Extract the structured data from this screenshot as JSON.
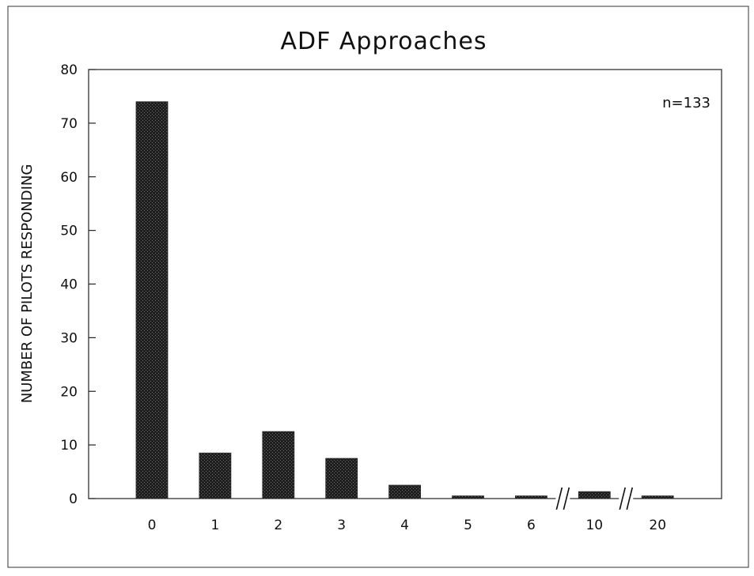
{
  "chart_data": {
    "type": "bar",
    "title": "ADF Approaches",
    "ylabel": "NUMBER OF PILOTS RESPONDING",
    "xlabel": "",
    "categories": [
      "0",
      "1",
      "2",
      "3",
      "4",
      "5",
      "6",
      "10",
      "20"
    ],
    "values": [
      74,
      8.5,
      12.5,
      7.5,
      2.5,
      0.5,
      0.5,
      1.3,
      0.5
    ],
    "ylim": [
      0,
      80
    ],
    "yticks": [
      "0",
      "10",
      "20",
      "30",
      "40",
      "50",
      "60",
      "70",
      "80"
    ],
    "annotation": "n=133",
    "axis_breaks": [
      "//",
      "//"
    ],
    "bar_color": "#2b2b2b",
    "grid": false,
    "legend": "none"
  }
}
